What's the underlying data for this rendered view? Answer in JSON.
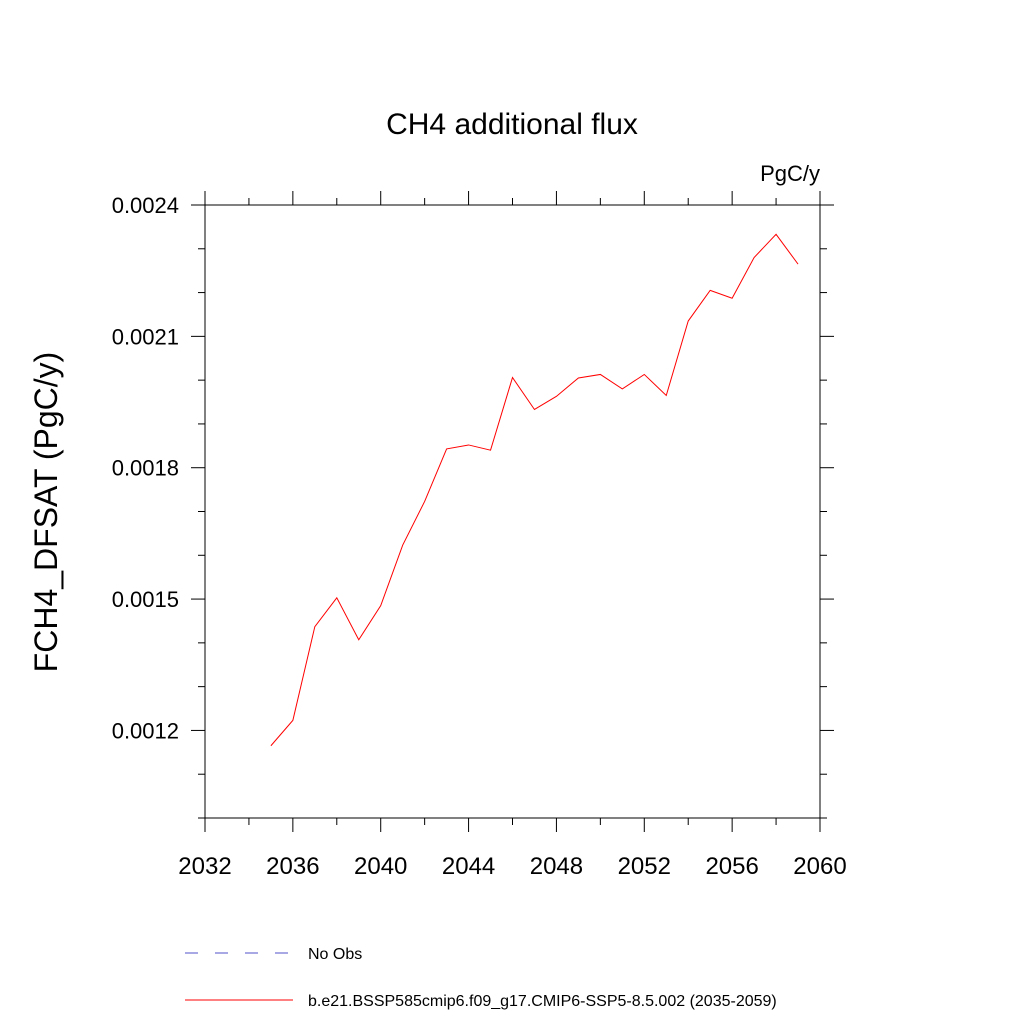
{
  "chart_data": {
    "type": "line",
    "title": "CH4 additional flux",
    "units_label": "PgC/y",
    "ylabel": "FCH4_DFSAT  (PgC/y)",
    "xlabel": "",
    "xlim": [
      2032,
      2060
    ],
    "ylim": [
      0.001,
      0.0024
    ],
    "xticks": [
      2032,
      2036,
      2040,
      2044,
      2048,
      2052,
      2056,
      2060
    ],
    "xtick_labels": [
      "2032",
      "2036",
      "2040",
      "2044",
      "2048",
      "2052",
      "2056",
      "2060"
    ],
    "yticks": [
      0.0012,
      0.0015,
      0.0018,
      0.0021,
      0.0024
    ],
    "ytick_labels": [
      "0.0012",
      "0.0015",
      "0.0018",
      "0.0021",
      "0.0024"
    ],
    "grid": false,
    "legend_placement": "bottom",
    "series": [
      {
        "name": "b.e21.BSSP585cmip6.f09_g17.CMIP6-SSP5-8.5.002 (2035-2059)",
        "color": "#ff0000",
        "style": "solid",
        "x": [
          2035,
          2036,
          2037,
          2038,
          2039,
          2040,
          2041,
          2042,
          2043,
          2044,
          2045,
          2046,
          2047,
          2048,
          2049,
          2050,
          2051,
          2052,
          2053,
          2054,
          2055,
          2056,
          2057,
          2058,
          2059
        ],
        "y": [
          0.001165,
          0.001223,
          0.001437,
          0.001503,
          0.001407,
          0.001485,
          0.001623,
          0.001723,
          0.001843,
          0.001852,
          0.00184,
          0.002006,
          0.001933,
          0.001963,
          0.002005,
          0.002013,
          0.00198,
          0.002013,
          0.001965,
          0.002135,
          0.002205,
          0.002187,
          0.00228,
          0.002333,
          0.002265
        ]
      }
    ],
    "legend": [
      {
        "label": "No Obs",
        "color": "#5050c8",
        "style": "dashed"
      },
      {
        "label": "b.e21.BSSP585cmip6.f09_g17.CMIP6-SSP5-8.5.002 (2035-2059)",
        "color": "#ff0000",
        "style": "solid"
      }
    ]
  }
}
